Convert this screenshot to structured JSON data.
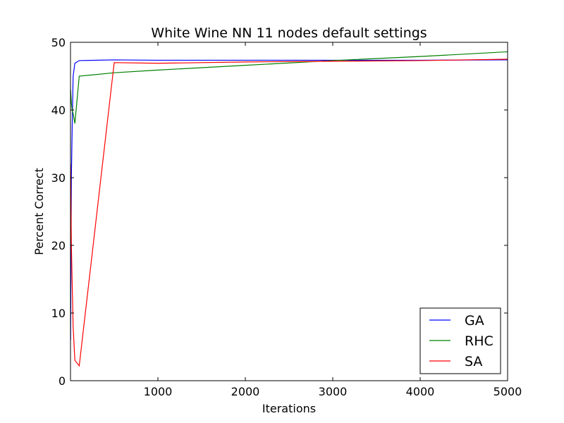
{
  "chart_data": {
    "type": "line",
    "title": "White Wine NN 11 nodes default settings",
    "xlabel": "Iterations",
    "ylabel": "Percent Correct",
    "xlim": [
      0,
      5000
    ],
    "ylim": [
      0,
      50
    ],
    "xticks": [
      1000,
      2000,
      3000,
      4000,
      5000
    ],
    "yticks": [
      0,
      10,
      20,
      30,
      40,
      50
    ],
    "grid": false,
    "legend_position": "bottom-right",
    "series": [
      {
        "name": "GA",
        "color": "#0000ff",
        "x": [
          1,
          10,
          20,
          30,
          50,
          100,
          500,
          1000,
          2000,
          3000,
          4000,
          5000
        ],
        "y": [
          6,
          30,
          38,
          45,
          46.9,
          47.3,
          47.4,
          47.35,
          47.35,
          47.35,
          47.35,
          47.4
        ]
      },
      {
        "name": "RHC",
        "color": "#008000",
        "x": [
          1,
          10,
          20,
          30,
          50,
          100,
          500,
          1000,
          2000,
          3000,
          4000,
          5000
        ],
        "y": [
          43,
          41,
          40,
          39.5,
          38,
          45,
          45.5,
          45.9,
          46.6,
          47.3,
          47.9,
          48.6
        ]
      },
      {
        "name": "SA",
        "color": "#ff0000",
        "x": [
          1,
          10,
          20,
          30,
          50,
          100,
          500,
          1000,
          2000,
          3000,
          4000,
          5000
        ],
        "y": [
          32,
          20,
          14,
          8,
          3,
          2.2,
          47,
          46.9,
          47.1,
          47.2,
          47.3,
          47.5
        ]
      }
    ]
  }
}
